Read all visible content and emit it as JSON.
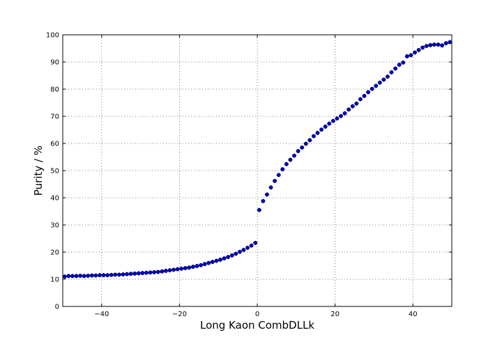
{
  "chart_data": {
    "type": "scatter",
    "xlabel": "Long Kaon CombDLLk",
    "ylabel": "Purity / %",
    "xlim": [
      -50,
      50
    ],
    "ylim": [
      0,
      100
    ],
    "xticks": [
      -40,
      -20,
      0,
      20,
      40
    ],
    "yticks": [
      0,
      10,
      20,
      30,
      40,
      50,
      60,
      70,
      80,
      90,
      100
    ],
    "xtick_labels": [
      "−40",
      "−20",
      "0",
      "20",
      "40"
    ],
    "ytick_labels": [
      "0",
      "10",
      "20",
      "30",
      "40",
      "50",
      "60",
      "70",
      "80",
      "90",
      "100"
    ],
    "grid": true,
    "marker_color": "#0000cc",
    "series": [
      {
        "x": [
          -49.5,
          -48.5,
          -47.5,
          -46.5,
          -45.5,
          -44.5,
          -43.5,
          -42.5,
          -41.5,
          -40.5,
          -39.5,
          -38.5,
          -37.5,
          -36.5,
          -35.5,
          -34.5,
          -33.5,
          -32.5,
          -31.5,
          -30.5,
          -29.5,
          -28.5,
          -27.5,
          -26.5,
          -25.5,
          -24.5,
          -23.5,
          -22.5,
          -21.5,
          -20.5,
          -19.5,
          -18.5,
          -17.5,
          -16.5,
          -15.5,
          -14.5,
          -13.5,
          -12.5,
          -11.5,
          -10.5,
          -9.5,
          -8.5,
          -7.5,
          -6.5,
          -5.5,
          -4.5,
          -3.5,
          -2.5,
          -1.5,
          -0.5,
          0.5,
          1.5,
          2.5,
          3.5,
          4.5,
          5.5,
          6.5,
          7.5,
          8.5,
          9.5,
          10.5,
          11.5,
          12.5,
          13.5,
          14.5,
          15.5,
          16.5,
          17.5,
          18.5,
          19.5,
          20.5,
          21.5,
          22.5,
          23.5,
          24.5,
          25.5,
          26.5,
          27.5,
          28.5,
          29.5,
          30.5,
          31.5,
          32.5,
          33.5,
          34.5,
          35.5,
          36.5,
          37.5,
          38.5,
          39.5,
          40.5,
          41.5,
          42.5,
          43.5,
          44.5,
          45.5,
          46.5,
          47.5,
          48.5,
          49.5
        ],
        "y": [
          11.0,
          11.2,
          11.2,
          11.2,
          11.3,
          11.2,
          11.3,
          11.4,
          11.4,
          11.5,
          11.5,
          11.5,
          11.6,
          11.7,
          11.7,
          11.8,
          11.9,
          12.0,
          12.1,
          12.2,
          12.3,
          12.4,
          12.5,
          12.6,
          12.7,
          12.9,
          13.1,
          13.3,
          13.5,
          13.7,
          13.9,
          14.1,
          14.3,
          14.6,
          14.9,
          15.2,
          15.6,
          16.0,
          16.4,
          16.8,
          17.2,
          17.7,
          18.2,
          18.8,
          19.4,
          20.1,
          20.8,
          21.6,
          22.4,
          23.4,
          35.5,
          38.8,
          41.2,
          43.8,
          46.2,
          48.4,
          50.5,
          52.4,
          54.0,
          55.5,
          57.2,
          58.5,
          59.9,
          61.2,
          62.7,
          63.9,
          65.1,
          66.2,
          67.3,
          68.3,
          69.2,
          70.1,
          71.1,
          72.5,
          73.7,
          74.7,
          76.3,
          77.5,
          78.9,
          80.1,
          81.2,
          82.4,
          83.5,
          84.6,
          86.2,
          87.6,
          89.0,
          89.8,
          92.1,
          92.5,
          93.5,
          94.4,
          95.3,
          95.9,
          96.2,
          96.4,
          96.4,
          96.1,
          96.9,
          97.3
        ]
      }
    ]
  }
}
